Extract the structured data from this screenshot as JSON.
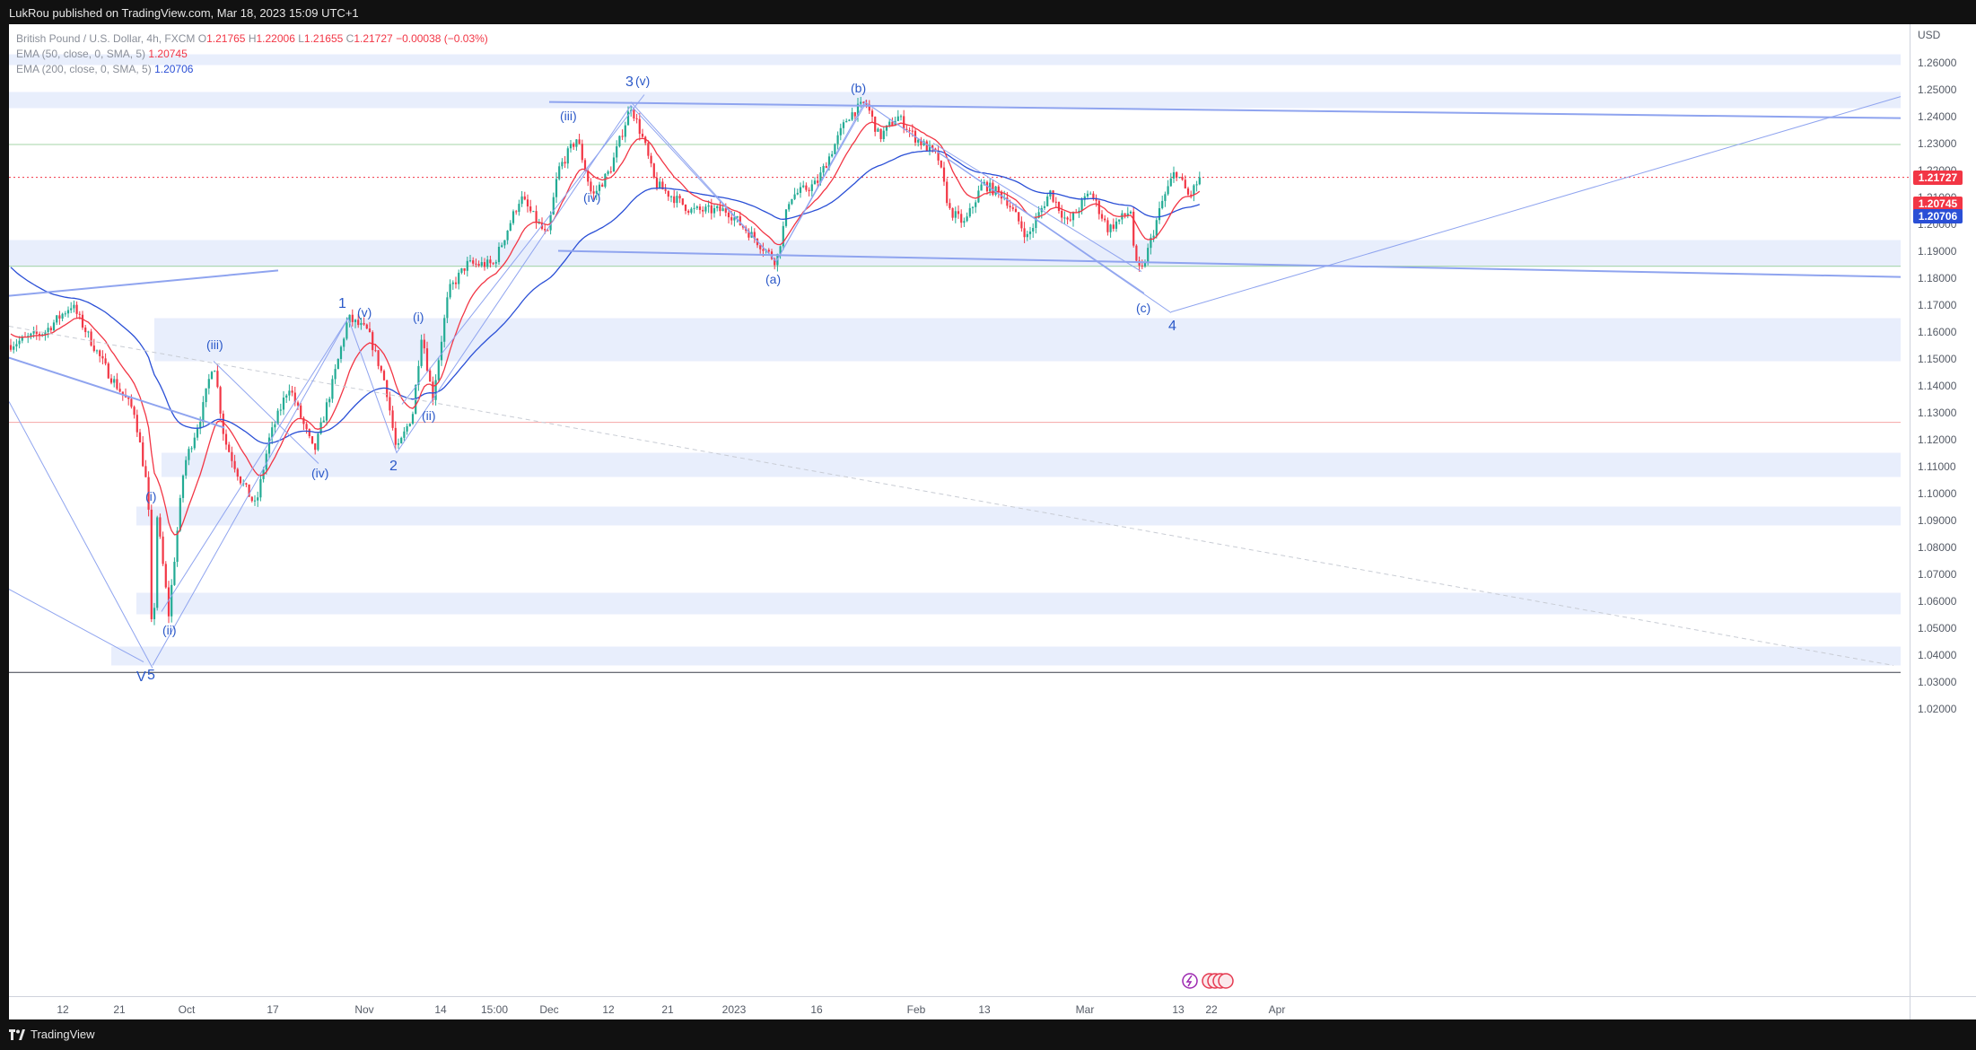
{
  "header": {
    "publisher": "LukRou published on TradingView.com, Mar 18, 2023 15:09 UTC+1"
  },
  "legend": {
    "symbol": "British Pound / U.S. Dollar, 4h, FXCM",
    "open_label": "O",
    "open": "1.21765",
    "high_label": "H",
    "high": "1.22006",
    "low_label": "L",
    "low": "1.21655",
    "close_label": "C",
    "close": "1.21727",
    "change": "−0.00038 (−0.03%)",
    "ema50_label": "EMA (50, close, 0, SMA, 5)",
    "ema50_value": "1.20745",
    "ema200_label": "EMA (200, close, 0, SMA, 5)",
    "ema200_value": "1.20706"
  },
  "price_axis": {
    "currency": "USD",
    "labels": [
      "1.26000",
      "1.25000",
      "1.24000",
      "1.23000",
      "1.22000",
      "1.21000",
      "1.20000",
      "1.19000",
      "1.18000",
      "1.17000",
      "1.16000",
      "1.15000",
      "1.14000",
      "1.13000",
      "1.12000",
      "1.11000",
      "1.10000",
      "1.09000",
      "1.08000",
      "1.07000",
      "1.06000",
      "1.05000",
      "1.04000",
      "1.03000",
      "1.02000"
    ],
    "tags": {
      "last": "1.21727",
      "ema50": "1.20745",
      "ema200": "1.20706"
    }
  },
  "time_axis": {
    "labels": [
      "12",
      "21",
      "Oct",
      "17",
      "Nov",
      "14",
      "15:00",
      "Dec",
      "12",
      "21",
      "2023",
      "16",
      "Feb",
      "13",
      "Mar",
      "13",
      "22",
      "Apr"
    ]
  },
  "wave_labels": [
    "V",
    "5",
    "(i)",
    "(ii)",
    "(iii)",
    "(iv)",
    "1",
    "(v)",
    "2",
    "(i)",
    "(ii)",
    "(iii)",
    "(iv)",
    "3",
    "(v)",
    "(a)",
    "(b)",
    "(c)",
    "4"
  ],
  "footer": {
    "brand": "TradingView"
  },
  "colors": {
    "up": "#22ab94",
    "down": "#f23645",
    "ema50": "#f23645",
    "ema200": "#2a4fd6",
    "zone": "#e8eefc",
    "trend": "#8fa4ef",
    "wave": "#2a58c8"
  }
}
